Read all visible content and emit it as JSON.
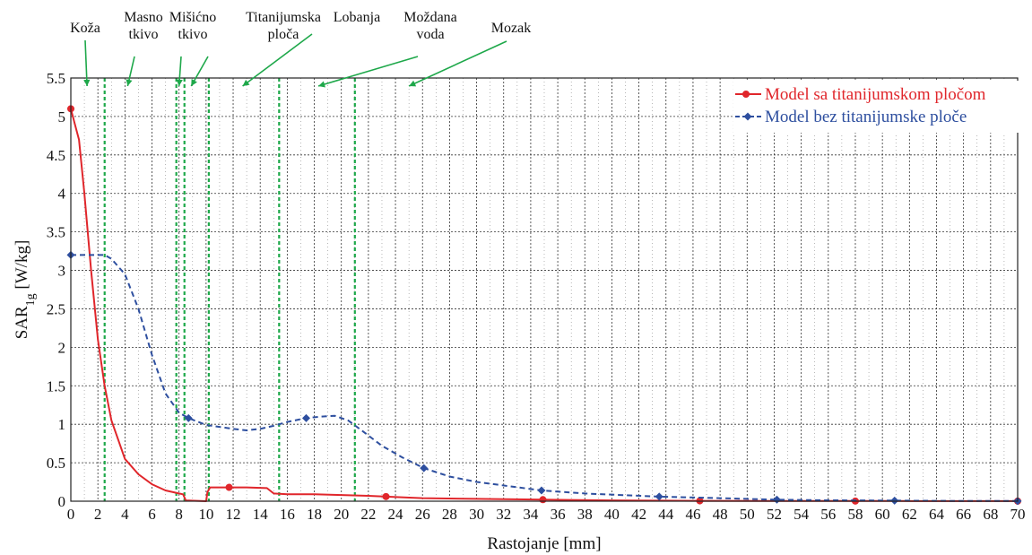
{
  "chart_data": {
    "type": "line",
    "xlabel": "Rastojanje [mm]",
    "ylabel_main": "SAR",
    "ylabel_sub": "1g",
    "ylabel_unit": " [W/kg]",
    "xlim": [
      0,
      70
    ],
    "ylim": [
      0,
      5.5
    ],
    "xticks": [
      0,
      2,
      4,
      6,
      8,
      10,
      12,
      14,
      16,
      18,
      20,
      22,
      24,
      26,
      28,
      30,
      32,
      34,
      36,
      38,
      40,
      42,
      44,
      46,
      48,
      50,
      52,
      54,
      56,
      58,
      60,
      62,
      64,
      66,
      68,
      70
    ],
    "yticks": [
      0,
      0.5,
      1,
      1.5,
      2,
      2.5,
      3,
      3.5,
      4,
      4.5,
      5,
      5.5
    ],
    "ytick_labels": [
      "0",
      "0.5",
      "1",
      "1.5",
      "2",
      "2.5",
      "3",
      "3.5",
      "4",
      "4.5",
      "5",
      "5.5"
    ],
    "grid": true,
    "legend_position": "top-right",
    "series": [
      {
        "name": "Model sa titanijumskom pločom",
        "color": "#e0262b",
        "dash": "solid",
        "marker": "circle",
        "x": [
          0,
          0.3,
          0.6,
          1,
          1.5,
          2,
          2.5,
          3,
          3.5,
          4,
          5,
          6,
          7,
          8,
          8.3,
          8.5,
          10,
          10.1,
          10.3,
          11.7,
          13,
          14.5,
          15,
          16,
          18,
          20,
          22,
          23.3,
          26,
          30,
          34.9,
          40,
          46.5,
          52,
          58,
          61,
          65,
          70
        ],
        "y": [
          5.1,
          4.9,
          4.7,
          4.0,
          3.0,
          2.1,
          1.5,
          1.05,
          0.8,
          0.55,
          0.35,
          0.22,
          0.14,
          0.1,
          0.09,
          0.01,
          0.0,
          0.12,
          0.18,
          0.18,
          0.18,
          0.17,
          0.1,
          0.09,
          0.09,
          0.08,
          0.07,
          0.06,
          0.04,
          0.03,
          0.02,
          0.01,
          0.005,
          0.003,
          0.002,
          0.002,
          0.001,
          0.001
        ],
        "markers_x": [
          0,
          11.7,
          23.3,
          34.9,
          46.5,
          58,
          70
        ],
        "markers_y": [
          5.1,
          0.18,
          0.06,
          0.02,
          0.005,
          0.002,
          0.001
        ]
      },
      {
        "name": "Model bez titanijumske ploče",
        "color": "#2e4f9f",
        "dash": "dashed",
        "marker": "diamond",
        "x": [
          0,
          1,
          2,
          2.5,
          3,
          4,
          5,
          6,
          7,
          8,
          8.7,
          10,
          12,
          13,
          14,
          15,
          16,
          17.4,
          18.5,
          19.5,
          20.5,
          21.5,
          23,
          24.5,
          26.1,
          28,
          30,
          34.8,
          38,
          43.5,
          48,
          52.2,
          56,
          60.9,
          65,
          70
        ],
        "y": [
          3.2,
          3.2,
          3.2,
          3.2,
          3.15,
          2.95,
          2.5,
          1.9,
          1.4,
          1.15,
          1.08,
          0.99,
          0.94,
          0.92,
          0.94,
          0.98,
          1.03,
          1.08,
          1.1,
          1.11,
          1.05,
          0.92,
          0.72,
          0.57,
          0.43,
          0.32,
          0.25,
          0.14,
          0.1,
          0.06,
          0.04,
          0.02,
          0.012,
          0.008,
          0.004,
          0.002
        ],
        "markers_x": [
          0,
          8.7,
          17.4,
          26.1,
          34.8,
          43.5,
          52.2,
          60.9,
          70
        ],
        "markers_y": [
          3.2,
          1.08,
          1.08,
          0.43,
          0.14,
          0.06,
          0.02,
          0.008,
          0.002
        ]
      }
    ],
    "boundaries": [
      2.5,
      7.8,
      8.4,
      10.2,
      15.4,
      21
    ],
    "boundary_color": "#1ea84a",
    "regions": [
      {
        "lines": [
          "Koža"
        ],
        "arrow_to_x": 1.2
      },
      {
        "lines": [
          "Masno",
          "tkivo"
        ],
        "arrow_to_x": 4.2
      },
      {
        "lines": [
          "Mišićno",
          "tkivo"
        ],
        "arrow_to_x": 8.0
      },
      {
        "lines": [
          "Titanijumska",
          "ploča"
        ],
        "arrow_to_x": 8.9
      },
      {
        "lines": [
          "Lobanja"
        ],
        "arrow_to_x": 12.7
      },
      {
        "lines": [
          "Moždana",
          "voda"
        ],
        "arrow_to_x": 18.3
      },
      {
        "lines": [
          "Mozak"
        ],
        "arrow_to_x": 25
      }
    ]
  }
}
